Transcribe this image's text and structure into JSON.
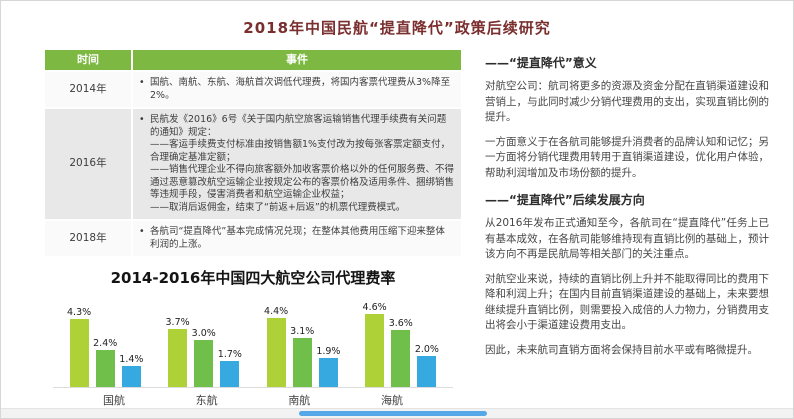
{
  "page": {
    "title": "2018年中国民航“提直降代”政策后续研究"
  },
  "colors": {
    "table_header_green": "#7cb842",
    "row_alt_gray": "#e8e8e8",
    "title_dark_red": "#7a2e2e",
    "scrollbar_thumb_blue": "#55a7e8"
  },
  "table": {
    "bullet_glyph": "•",
    "col_time": "时间",
    "col_event": "事件",
    "rows": [
      {
        "time": "2014年",
        "lines": [
          "国航、南航、东航、海航首次调低代理费，将国内客票代理费从3%降至2%。"
        ]
      },
      {
        "time": "2016年",
        "lines": [
          "民航发《2016》6号《关于国内航空旅客运输销售代理手续费有关问题的通知》规定：",
          "——客运手续费支付标准由按销售额1%支付改为按每张客票定额支付，合理确定基准定额；",
          "——销售代理企业不得向旅客额外加收客票价格以外的任何服务费、不得通过恶意篡改航空运输企业按规定公布的客票价格及适用条件、捆绑销售等违规手段，侵害消费者和航空运输企业权益；",
          "——取消后返佣金，结束了“前返+后返”的机票代理费模式。"
        ]
      },
      {
        "time": "2018年",
        "lines": [
          "各航司“提直降代”基本完成情况兑现；在整体其他费用压缩下迎来整体利润的上涨。"
        ]
      }
    ]
  },
  "chart_data": {
    "type": "bar",
    "title": "2014-2016年中国四大航空公司代理费率",
    "categories": [
      "国航",
      "东航",
      "南航",
      "海航"
    ],
    "series": [
      {
        "name": "2014年（%）",
        "color": "#aed138",
        "values": [
          4.3,
          3.7,
          4.4,
          4.6
        ]
      },
      {
        "name": "2015年（%）",
        "color": "#6fbf4a",
        "values": [
          2.4,
          3.0,
          3.1,
          3.6
        ]
      },
      {
        "name": "2016年（%）",
        "color": "#36a9e1",
        "values": [
          1.4,
          1.7,
          1.9,
          2.0
        ]
      }
    ],
    "ylim": [
      0,
      5
    ],
    "value_suffix": "%",
    "legend_position": "bottom",
    "grid": false
  },
  "right_panel": {
    "sections": [
      {
        "heading": "——“提直降代”意义",
        "paragraphs": [
          "对航空公司：航司将更多的资源及资金分配在直销渠道建设和营销上，与此同时减少分销代理费用的支出，实现直销比例的提升。",
          "一方面意义于在各航司能够提升消费者的品牌认知和记忆；另一方面将分销代理费用转用于直销渠道建设，优化用户体验，帮助利润增加及市场份额的提升。"
        ]
      },
      {
        "heading": "——“提直降代”后续发展方向",
        "paragraphs": [
          "从2016年发布正式通知至今，各航司在“提直降代”任务上已有基本成效，在各航司能够维持现有直销比例的基础上，预计该方向不再是民航局等相关部门的关注重点。",
          "对航空业来说，持续的直销比例上升并不能取得同比的费用下降和利润上升；在国内目前直销渠道建设的基础上，未来要想继续提升直销比例，则需要投入成倍的人力物力，分销费用支出将会小于渠道建设费用支出。",
          "因此，未来航司直销方面将会保持目前水平或有略微提升。"
        ]
      }
    ]
  }
}
